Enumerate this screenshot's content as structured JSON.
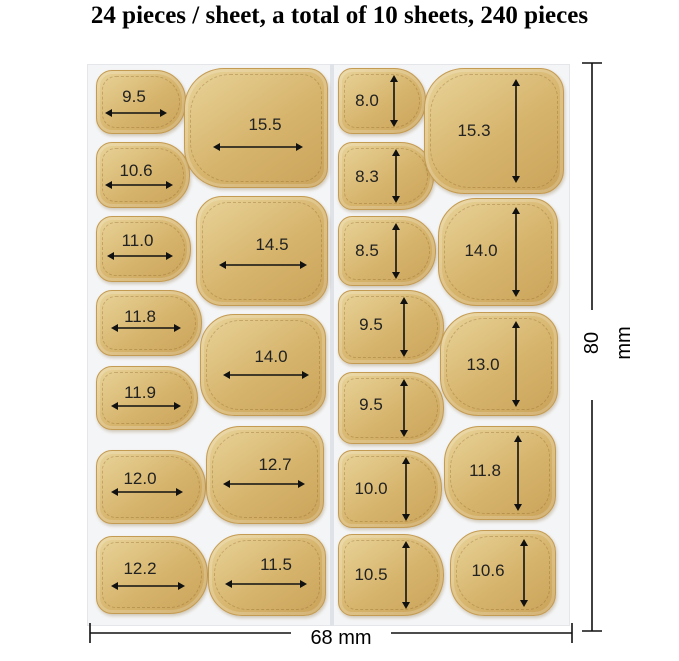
{
  "headline": "24 pieces / sheet, a total of 10 sheets, 240 pieces",
  "dimensions": {
    "height_label": "80 mm",
    "width_label": "68 mm"
  },
  "colors": {
    "tip_fill": "#d6b46c",
    "tip_edge": "#c49b53",
    "sheet": "#f4f5f6",
    "ink": "#111111"
  },
  "tips": {
    "col1": [
      "9.5",
      "10.6",
      "11.0",
      "11.8",
      "11.9",
      "12.0",
      "12.2"
    ],
    "col2": [
      "15.5",
      "14.5",
      "14.0",
      "12.7",
      "11.5"
    ],
    "col3": [
      "8.0",
      "8.3",
      "8.5",
      "9.5",
      "9.5",
      "10.0",
      "10.5"
    ],
    "col4": [
      "15.3",
      "14.0",
      "13.0",
      "11.8",
      "10.6"
    ]
  }
}
